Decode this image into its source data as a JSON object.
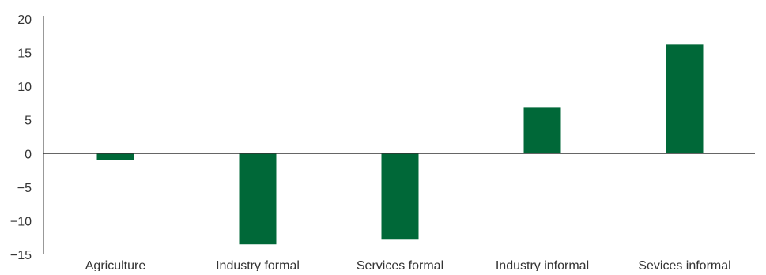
{
  "chart_data": {
    "type": "bar",
    "title": "",
    "xlabel": "",
    "ylabel": "",
    "ylim": [
      -15,
      20
    ],
    "yticks": [
      20,
      15,
      10,
      5,
      0,
      -5,
      -10,
      -15
    ],
    "ytick_labels": [
      "20",
      "15",
      "10",
      "5",
      "0",
      "−5",
      "−10",
      "−15"
    ],
    "categories": [
      "Agriculture",
      "Industry formal",
      "Services formal",
      "Industry informal",
      "Sevices informal"
    ],
    "values": [
      -1.0,
      -13.5,
      -12.8,
      6.8,
      16.2
    ],
    "grid": false,
    "legend": "none",
    "bar_color": "#006838",
    "axis_color": "#333333",
    "text_color": "#333333"
  }
}
